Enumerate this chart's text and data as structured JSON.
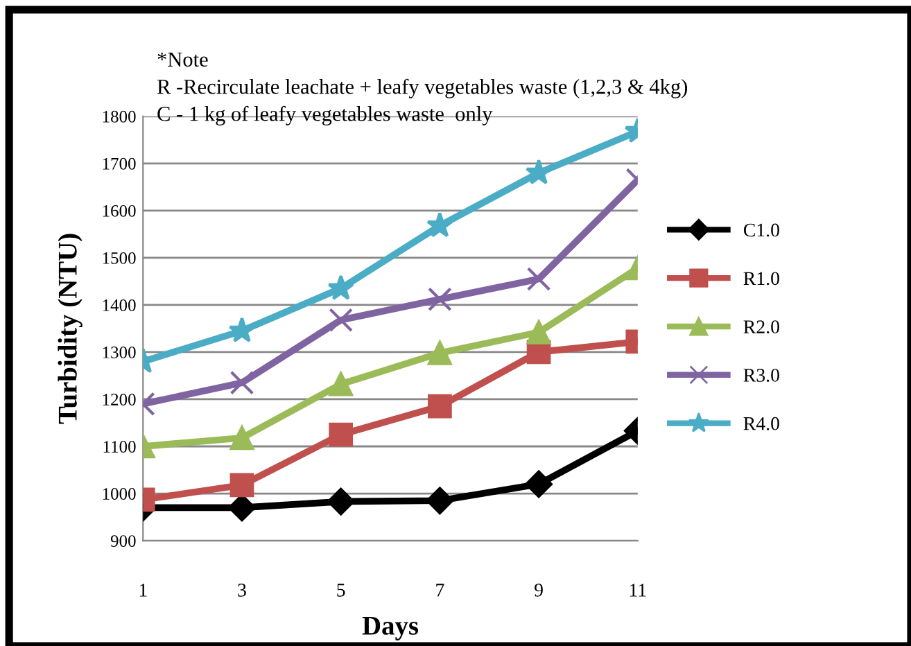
{
  "chart_data": {
    "type": "line",
    "xlabel": "Days",
    "ylabel": "Turbidity (NTU)",
    "annotations": [
      "*Note",
      "R -Recirculate leachate + leafy vegetables waste (1,2,3 & 4kg)",
      "C - 1 kg of leafy vegetables waste  only"
    ],
    "categories": [
      "1",
      "3",
      "5",
      "7",
      "9",
      "11"
    ],
    "series": [
      {
        "name": "C1.0",
        "color": "#000000",
        "marker": "diamond",
        "values": [
          970,
          970,
          983,
          985,
          1020,
          1133
        ]
      },
      {
        "name": "R1.0",
        "color": "#c0504d",
        "marker": "square",
        "values": [
          987,
          1018,
          1125,
          1185,
          1300,
          1322
        ]
      },
      {
        "name": "R2.0",
        "color": "#9bbb59",
        "marker": "triangle",
        "values": [
          1100,
          1118,
          1232,
          1298,
          1342,
          1478
        ]
      },
      {
        "name": "R3.0",
        "color": "#8064a2",
        "marker": "cross",
        "values": [
          1190,
          1235,
          1368,
          1412,
          1455,
          1665
        ]
      },
      {
        "name": "R4.0",
        "color": "#4bacc6",
        "marker": "star",
        "values": [
          1280,
          1345,
          1435,
          1568,
          1680,
          1768
        ]
      }
    ],
    "ylim": [
      900,
      1800
    ],
    "yticks": [
      900,
      1000,
      1100,
      1200,
      1300,
      1400,
      1500,
      1600,
      1700,
      1800
    ],
    "grid": "y",
    "legend": "right",
    "line_style": "solid"
  }
}
